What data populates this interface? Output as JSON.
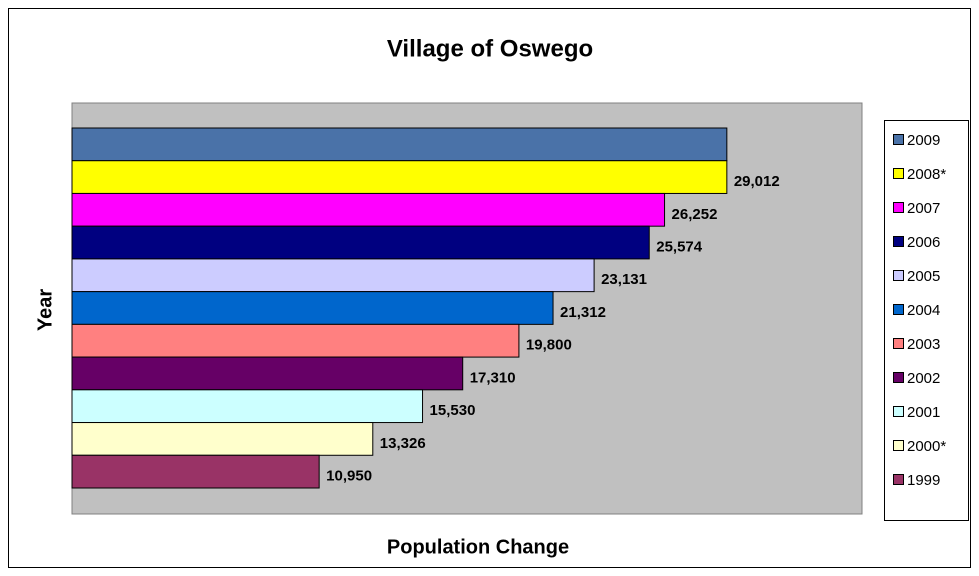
{
  "chart_data": {
    "type": "hbar",
    "title": "Village of Oswego",
    "xlabel": "Population Change",
    "ylabel": "Year",
    "categories": [
      "2009",
      "2008*",
      "2007",
      "2006",
      "2005",
      "2004",
      "2003",
      "2002",
      "2001",
      "2000*",
      "1999"
    ],
    "values": [
      29012,
      29012,
      26252,
      25574,
      23131,
      21312,
      19800,
      17310,
      15530,
      13326,
      10950
    ],
    "value_labels": [
      null,
      "29,012",
      "26,252",
      "25,574",
      "23,131",
      "21,312",
      "19,800",
      "17,310",
      "15,530",
      "13,326",
      "10,950"
    ],
    "colors": [
      "#4a72a8",
      "#ffff00",
      "#ff00ff",
      "#000080",
      "#ccccff",
      "#0066cc",
      "#ff8080",
      "#660066",
      "#ccffff",
      "#ffffcc",
      "#993366"
    ],
    "xlim": [
      0,
      35000
    ],
    "legend": "right"
  }
}
